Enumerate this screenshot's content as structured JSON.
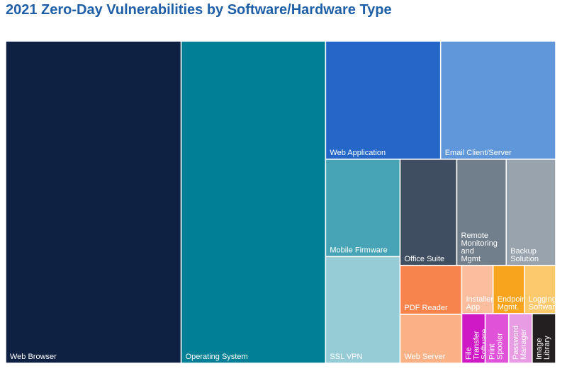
{
  "title": "2021 Zero-Day Vulnerabilities by Software/Hardware Type",
  "chart_data": {
    "type": "treemap",
    "title": "2021 Zero-Day Vulnerabilities by Software/Hardware Type",
    "items": [
      {
        "name": "web-browser",
        "label": "Web Browser",
        "lines": [
          "Web Browser"
        ],
        "value": 4130,
        "color": "#0e2143"
      },
      {
        "name": "operating-system",
        "label": "Operating System",
        "lines": [
          "Operating System"
        ],
        "value": 3400,
        "color": "#007f96"
      },
      {
        "name": "web-application",
        "label": "Web Application",
        "lines": [
          "Web Application"
        ],
        "value": 993,
        "color": "#2467c8"
      },
      {
        "name": "email-client-server",
        "label": "Email Client/Server",
        "lines": [
          "Email Client/Server"
        ],
        "value": 993,
        "color": "#5f97da"
      },
      {
        "name": "mobile-firmware",
        "label": "Mobile Firmware",
        "lines": [
          "Mobile Firmware"
        ],
        "value": 530,
        "color": "#47a3b6"
      },
      {
        "name": "office-suite",
        "label": "Office Suite",
        "lines": [
          "Office Suite"
        ],
        "value": 440,
        "color": "#3f4f61"
      },
      {
        "name": "remote-monitoring-mgmt",
        "label": "Remote Monitoring and Mgmt",
        "lines": [
          "Remote",
          "Monitoring",
          "and",
          "Mgmt"
        ],
        "value": 384,
        "color": "#717e8c"
      },
      {
        "name": "backup-solution",
        "label": "Backup Solution",
        "lines": [
          "Backup",
          "Solution"
        ],
        "value": 384,
        "color": "#98a3ad"
      },
      {
        "name": "ssl-vpn",
        "label": "SSL VPN",
        "lines": [
          "SSL VPN"
        ],
        "value": 580,
        "color": "#96ccd6"
      },
      {
        "name": "pdf-reader",
        "label": "PDF Reader",
        "lines": [
          "PDF Reader"
        ],
        "value": 220,
        "color": "#f7844c"
      },
      {
        "name": "web-server",
        "label": "Web Server",
        "lines": [
          "Web Server"
        ],
        "value": 220,
        "color": "#fab186"
      },
      {
        "name": "installer-app",
        "label": "Installer App",
        "lines": [
          "Installer",
          "App"
        ],
        "value": 110,
        "color": "#fbbd9d"
      },
      {
        "name": "endpoint-mgmt",
        "label": "Endpoint Mgmt.",
        "lines": [
          "Endpoint",
          "Mgmt."
        ],
        "value": 110,
        "color": "#f8a41c"
      },
      {
        "name": "logging-software",
        "label": "Logging Software",
        "lines": [
          "Logging",
          "Software"
        ],
        "value": 110,
        "color": "#fcc96d"
      },
      {
        "name": "file-transfer-software",
        "label": "File Transfer Software",
        "lines": [
          "File",
          "Transfer",
          "Software"
        ],
        "value": 85,
        "color": "#cf19c7"
      },
      {
        "name": "print-spooler",
        "label": "Print Spooler",
        "lines": [
          "Print",
          "Spooler"
        ],
        "value": 85,
        "color": "#e053d8"
      },
      {
        "name": "password-manager",
        "label": "Password Manager",
        "lines": [
          "Password",
          "Manager"
        ],
        "value": 85,
        "color": "#e89ce4"
      },
      {
        "name": "image-library",
        "label": "Image Library",
        "lines": [
          "Image",
          "Library"
        ],
        "value": 85,
        "color": "#231f20"
      }
    ]
  }
}
